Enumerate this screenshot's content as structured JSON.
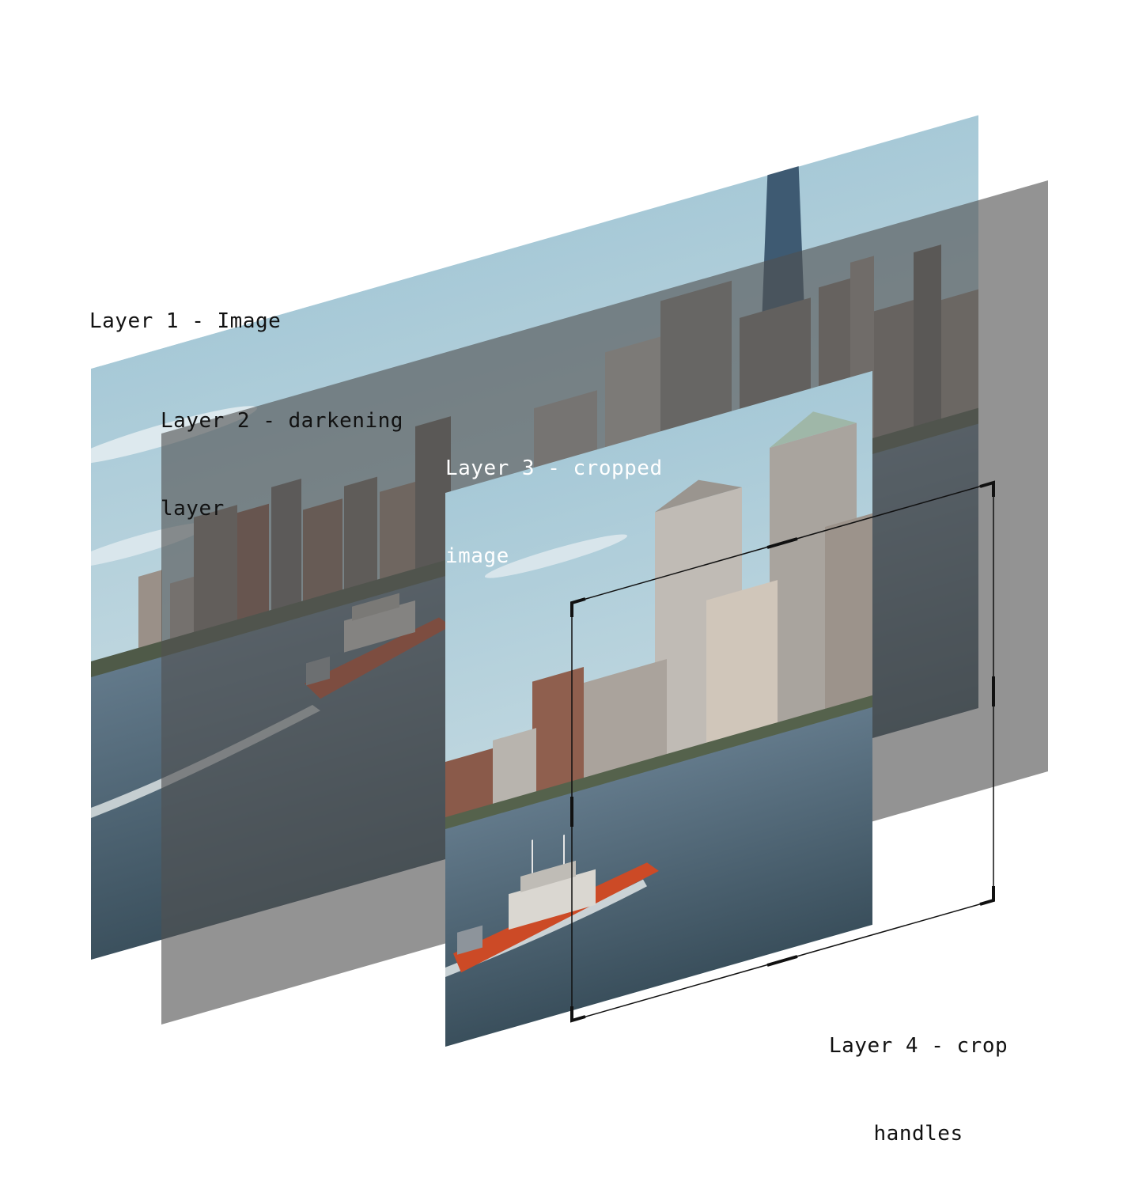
{
  "labels": {
    "layer1": {
      "line1": "Layer 1 - Image"
    },
    "layer2": {
      "line1": "Layer 2 - darkening",
      "line2": "layer"
    },
    "layer3": {
      "line1": "Layer 3 - cropped",
      "line2": "image"
    },
    "layer4": {
      "line1": "Layer 4 - crop",
      "line2": "handles"
    }
  },
  "colors": {
    "sky_top": "#a9cbd8",
    "sky_bottom": "#c9dde4",
    "water_top": "#5c7585",
    "water_bottom": "#3f5563",
    "building_light": "#b9b2ab",
    "building_dark": "#6e6a68",
    "building_brick": "#8a5a4a",
    "boat_hull": "#c84a2a",
    "boat_cabin": "#d9d7d2",
    "darkening_layer": "#505050",
    "crop_handles": "#111111"
  },
  "icons": {
    "boat": "patrol-boat-illustration",
    "skyline": "city-skyline-illustration"
  }
}
